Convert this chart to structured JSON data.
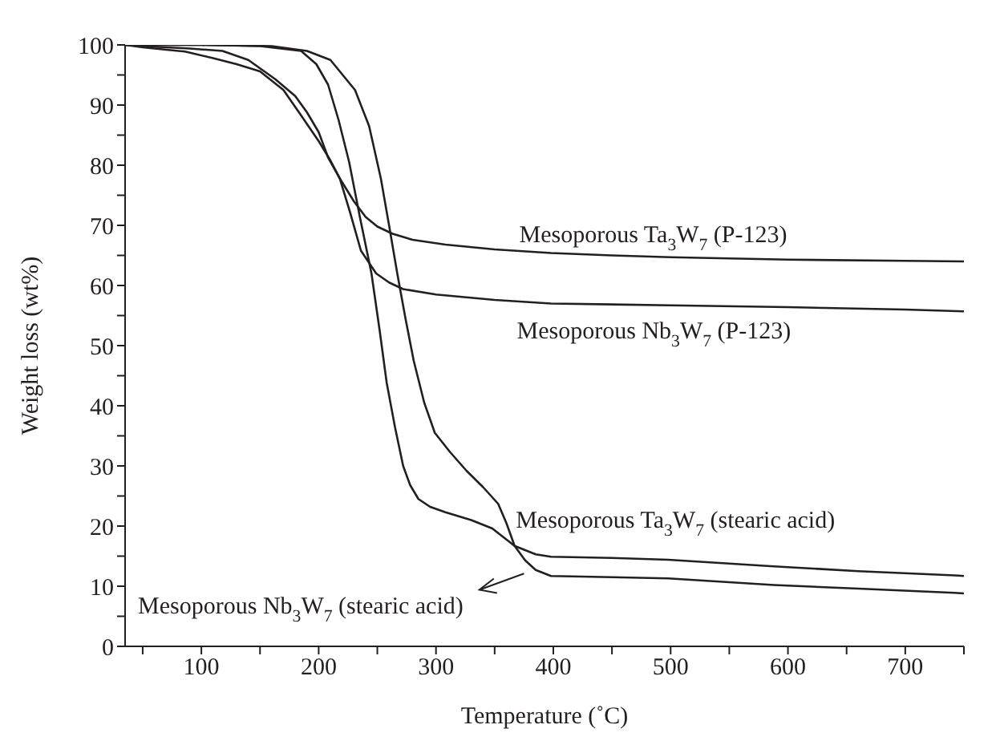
{
  "chart_data": {
    "type": "line",
    "xlabel": "Temperature (˚C)",
    "ylabel": "Weight loss (wt%)",
    "xlim": [
      35,
      750
    ],
    "ylim": [
      0,
      100
    ],
    "xticks": [
      {
        "value": 50,
        "label": null
      },
      100,
      {
        "value": 150,
        "label": null
      },
      200,
      {
        "value": 250,
        "label": null
      },
      300,
      {
        "value": 350,
        "label": null
      },
      400,
      {
        "value": 450,
        "label": null
      },
      500,
      {
        "value": 550,
        "label": null
      },
      600,
      {
        "value": 650,
        "label": null
      },
      700,
      {
        "value": 750,
        "label": null
      }
    ],
    "yticks": [
      0,
      {
        "value": 5,
        "label": null
      },
      10,
      {
        "value": 15,
        "label": null
      },
      20,
      {
        "value": 25,
        "label": null
      },
      30,
      {
        "value": 35,
        "label": null
      },
      40,
      {
        "value": 45,
        "label": null
      },
      50,
      {
        "value": 55,
        "label": null
      },
      60,
      {
        "value": 65,
        "label": null
      },
      70,
      {
        "value": 75,
        "label": null
      },
      80,
      {
        "value": 85,
        "label": null
      },
      90,
      {
        "value": 95,
        "label": null
      },
      100
    ],
    "grid": false,
    "marker": "none",
    "line_style": "solid",
    "series": [
      {
        "name": "Mesoporous Ta$_{3}$W$_{7}$ (P-123)",
        "color": "#231f20",
        "x": [
          35,
          60,
          90,
          118,
          140,
          163,
          180,
          190,
          200,
          208,
          218,
          230,
          240,
          250,
          263,
          280,
          308,
          350,
          398,
          450,
          500,
          600,
          700,
          750
        ],
        "values": [
          100,
          99.7,
          99.4,
          99,
          97.5,
          94.3,
          91.5,
          88.8,
          85.5,
          81.3,
          77.8,
          74,
          71.4,
          69.8,
          68.6,
          67.6,
          66.8,
          66,
          65.4,
          65,
          64.7,
          64.3,
          64.1,
          64
        ]
      },
      {
        "name": "Mesoporous Nb$_{3}$W$_{7}$ (P-123)",
        "color": "#231f20",
        "x": [
          35,
          50,
          70,
          86,
          110,
          130,
          150,
          170,
          186,
          200,
          210,
          218,
          227,
          236,
          249,
          260,
          272,
          300,
          350,
          398,
          500,
          600,
          700,
          750
        ],
        "values": [
          100,
          99.6,
          99.2,
          98.9,
          97.8,
          96.8,
          95.6,
          92.5,
          88,
          84,
          80.8,
          77.8,
          72,
          65.8,
          62,
          60.5,
          59.4,
          58.5,
          57.6,
          57,
          56.7,
          56.4,
          56,
          55.7
        ]
      },
      {
        "name": "Mesoporous Ta$_{3}$W$_{7}$ (stearic acid)",
        "color": "#231f20",
        "x": [
          35,
          100,
          150,
          185,
          198,
          208,
          217,
          226,
          235,
          245,
          252,
          258,
          265,
          272,
          278,
          285,
          295,
          308,
          330,
          348,
          367,
          385,
          398,
          450,
          498,
          588,
          660,
          742,
          750
        ],
        "values": [
          100,
          100,
          99.8,
          99,
          96.8,
          93.4,
          87.5,
          80.5,
          71.5,
          62,
          52.5,
          43.8,
          36.5,
          30,
          26.8,
          24.5,
          23.2,
          22.3,
          21,
          19.6,
          16.7,
          15.3,
          14.9,
          14.7,
          14.4,
          13.3,
          12.5,
          11.8,
          11.7
        ]
      },
      {
        "name": "Mesoporous Nb$_{3}$W$_{7}$ (stearic acid)",
        "color": "#231f20",
        "x": [
          35,
          100,
          160,
          190,
          210,
          231,
          243,
          253,
          260,
          267,
          274,
          281,
          290,
          299,
          312,
          326,
          340,
          353,
          360,
          367,
          376,
          385,
          398,
          450,
          498,
          588,
          660,
          742,
          750
        ],
        "values": [
          100,
          100,
          99.8,
          99,
          97.5,
          92.5,
          86.5,
          77.8,
          70,
          62,
          54.5,
          47.5,
          40.5,
          35.5,
          32.3,
          29.2,
          26.5,
          23.7,
          20.5,
          16.7,
          14.3,
          12.7,
          11.7,
          11.5,
          11.3,
          10.2,
          9.6,
          8.9,
          8.8
        ]
      }
    ]
  }
}
